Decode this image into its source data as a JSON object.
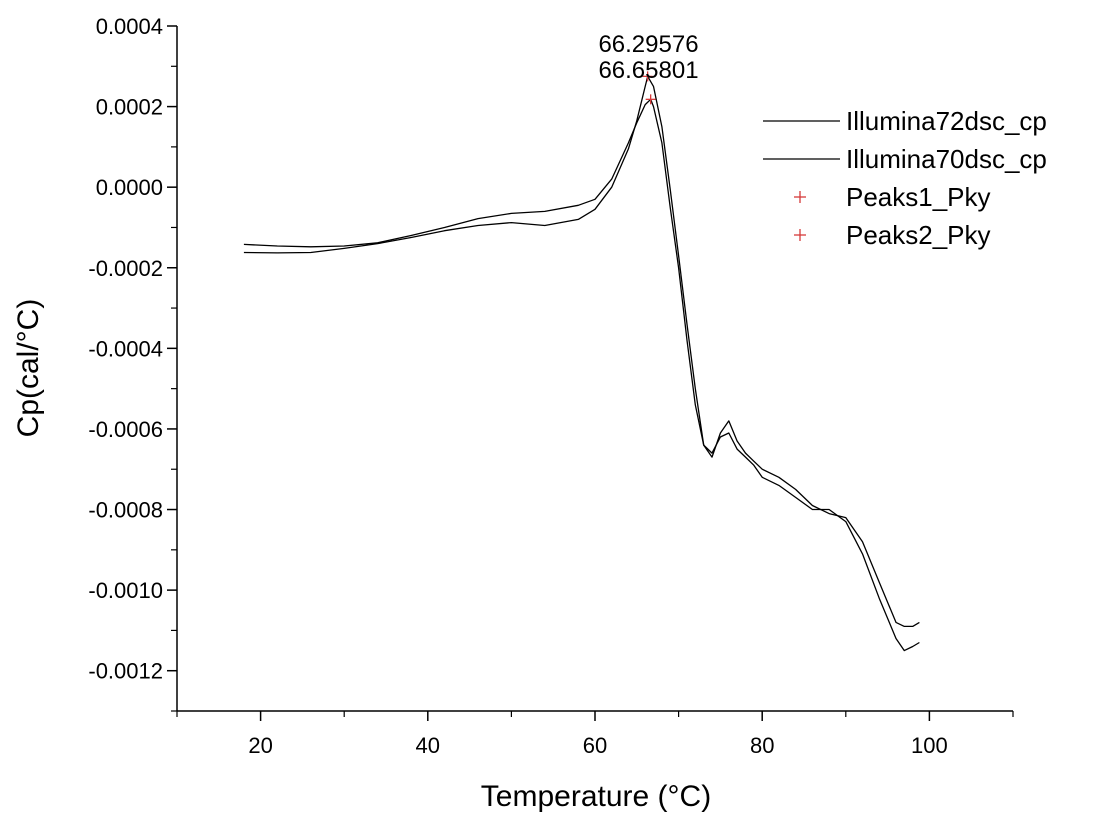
{
  "chart_data": {
    "type": "line",
    "title": "",
    "xlabel": "Temperature (°C)",
    "ylabel": "Cp(cal/°C)",
    "xlim": [
      10,
      110
    ],
    "ylim": [
      -0.0013,
      0.0004
    ],
    "x_ticks": [
      20,
      40,
      60,
      80,
      100
    ],
    "y_ticks": [
      0.0004,
      0.0002,
      0.0,
      -0.0002,
      -0.0004,
      -0.0006,
      -0.0008,
      -0.001,
      -0.0012
    ],
    "x_tick_labels": [
      "20",
      "40",
      "60",
      "80",
      "100"
    ],
    "y_tick_labels": [
      "0.0004",
      "0.0002",
      "0.0000",
      "-0.0002",
      "-0.0004",
      "-0.0006",
      "-0.0008",
      "-0.0010",
      "-0.0012"
    ],
    "grid": false,
    "legend_position": "top-right",
    "series": [
      {
        "name": "Illumina72dsc_cp",
        "color": "#000000",
        "x": [
          18,
          22,
          26,
          30,
          34,
          38,
          42,
          46,
          50,
          54,
          58,
          60,
          62,
          64,
          65,
          66,
          66.3,
          67,
          68,
          69,
          70,
          71,
          72,
          73,
          74,
          75,
          76,
          77,
          78,
          79,
          80,
          82,
          84,
          86,
          88,
          90,
          92,
          94,
          96,
          97,
          98,
          98.8
        ],
        "y": [
          -0.000162,
          -0.000163,
          -0.000162,
          -0.000152,
          -0.00014,
          -0.000125,
          -0.000108,
          -9.5e-05,
          -8.8e-05,
          -9.5e-05,
          -8e-05,
          -5.5e-05,
          0.0,
          9.5e-05,
          0.000165,
          0.00025,
          0.000275,
          0.00025,
          0.00015,
          -5e-06,
          -0.00017,
          -0.00034,
          -0.0005,
          -0.00064,
          -0.00067,
          -0.00061,
          -0.00058,
          -0.00063,
          -0.00066,
          -0.00068,
          -0.0007,
          -0.00072,
          -0.00075,
          -0.00079,
          -0.00081,
          -0.00082,
          -0.00088,
          -0.00098,
          -0.00108,
          -0.00109,
          -0.00109,
          -0.00108
        ]
      },
      {
        "name": "Illumina70dsc_cp",
        "color": "#000000",
        "x": [
          18,
          22,
          26,
          30,
          34,
          38,
          42,
          46,
          50,
          54,
          58,
          60,
          62,
          64,
          65,
          66,
          66.66,
          67,
          68,
          69,
          70,
          71,
          72,
          73,
          74,
          75,
          76,
          77,
          78,
          79,
          80,
          82,
          84,
          86,
          88,
          90,
          92,
          94,
          96,
          97,
          98,
          98.8
        ],
        "y": [
          -0.000142,
          -0.000146,
          -0.000148,
          -0.000146,
          -0.000138,
          -0.00012,
          -0.0001,
          -7.8e-05,
          -6.5e-05,
          -6e-05,
          -4.5e-05,
          -3e-05,
          2e-05,
          0.00011,
          0.00016,
          0.000205,
          0.000218,
          0.0002,
          0.00011,
          -5e-05,
          -0.0002,
          -0.00038,
          -0.00054,
          -0.00064,
          -0.00066,
          -0.00062,
          -0.00061,
          -0.00065,
          -0.00067,
          -0.00069,
          -0.00072,
          -0.00074,
          -0.00077,
          -0.0008,
          -0.0008,
          -0.00083,
          -0.00091,
          -0.00102,
          -0.00112,
          -0.00115,
          -0.00114,
          -0.00113
        ]
      }
    ],
    "peaks": [
      {
        "name": "Peaks1_Pky",
        "color": "#d63a3a",
        "x": 66.29576,
        "y": 0.000275,
        "label": "66.29576"
      },
      {
        "name": "Peaks2_Pky",
        "color": "#d63a3a",
        "x": 66.65801,
        "y": 0.000218,
        "label": "66.65801"
      }
    ]
  }
}
